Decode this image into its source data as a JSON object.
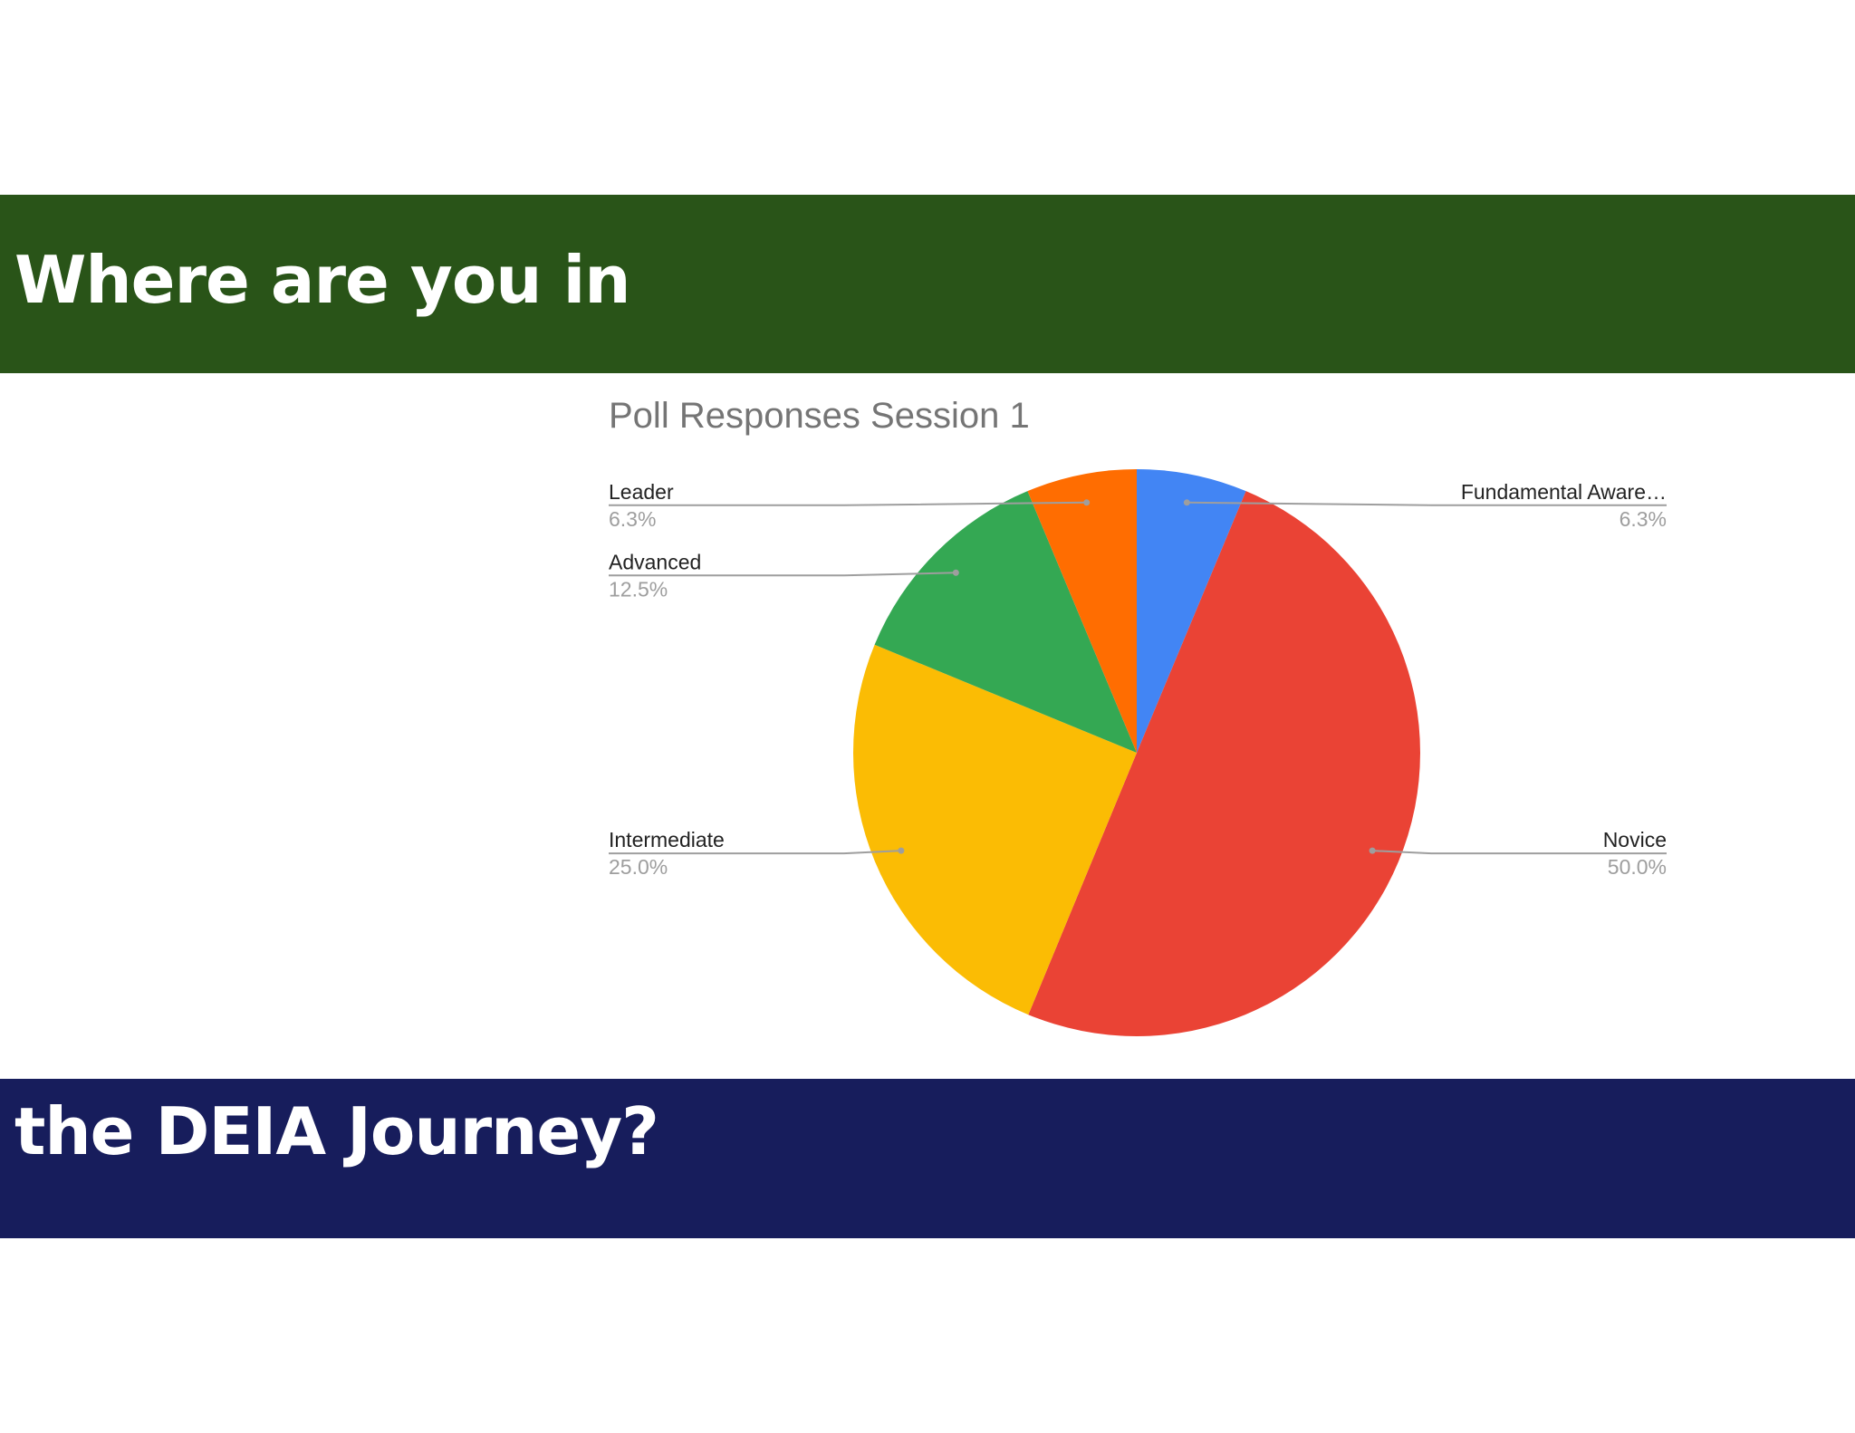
{
  "slide": {
    "title_line1": "Where are you in",
    "title_line2": "the DEIA Journey?"
  },
  "chart_data": {
    "type": "pie",
    "title": "Poll Responses Session 1",
    "slices": [
      {
        "label": "Fundamental Aware…",
        "value": 6.3,
        "value_label": "6.3%",
        "color": "#4285f4",
        "label_side": "right"
      },
      {
        "label": "Novice",
        "value": 50.0,
        "value_label": "50.0%",
        "color": "#ea4335",
        "label_side": "right"
      },
      {
        "label": "Intermediate",
        "value": 25.0,
        "value_label": "25.0%",
        "color": "#fbbc04",
        "label_side": "left"
      },
      {
        "label": "Advanced",
        "value": 12.5,
        "value_label": "12.5%",
        "color": "#34a853",
        "label_side": "left"
      },
      {
        "label": "Leader",
        "value": 6.3,
        "value_label": "6.3%",
        "color": "#ff6d01",
        "label_side": "left"
      }
    ],
    "start_angle": "12 o'clock",
    "direction": "clockwise",
    "legend": "none"
  }
}
